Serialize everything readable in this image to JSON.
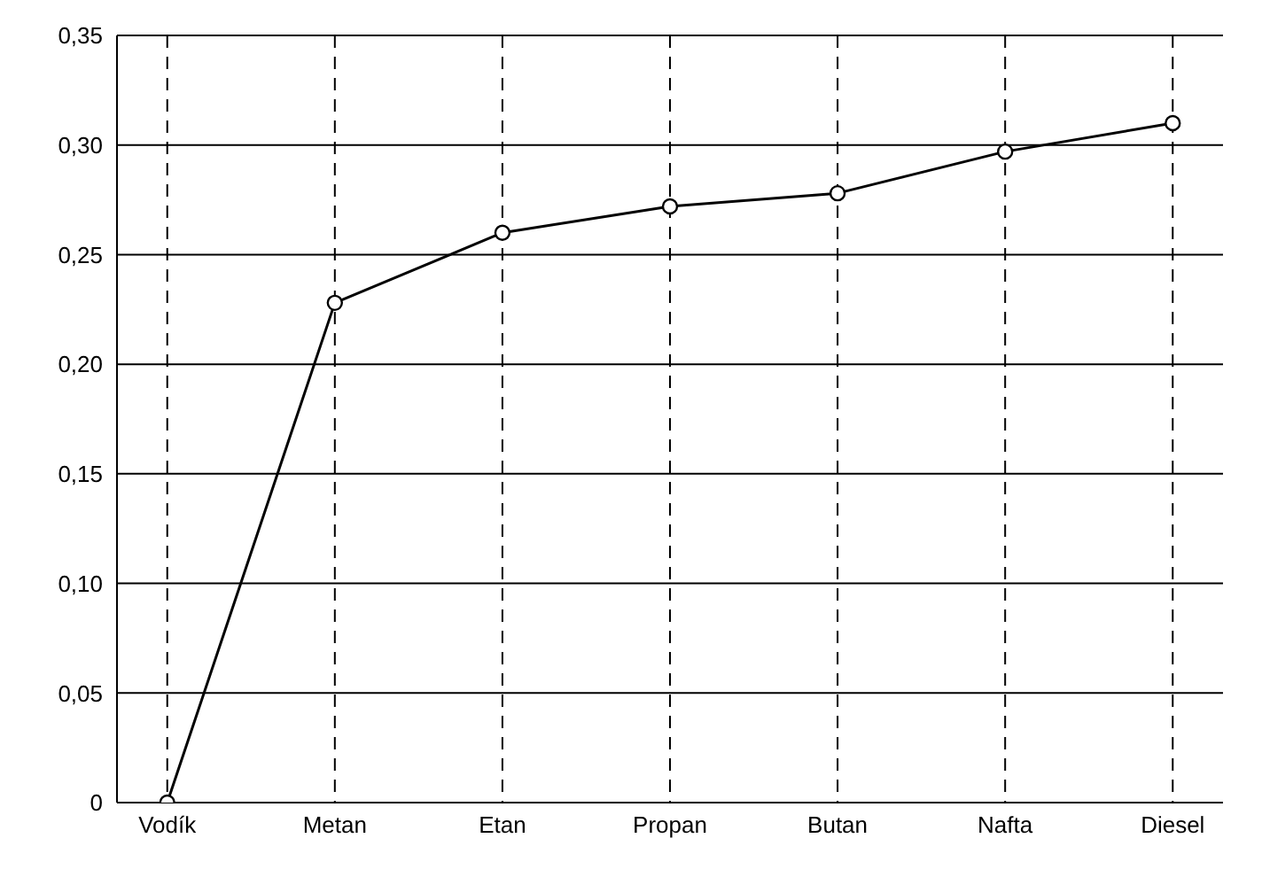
{
  "chart_data": {
    "type": "line",
    "categories": [
      "Vodík",
      "Metan",
      "Etan",
      "Propan",
      "Butan",
      "Nafta",
      "Diesel"
    ],
    "series": [
      {
        "color": "#000000",
        "values": [
          0,
          0.228,
          0.26,
          0.272,
          0.278,
          0.297,
          0.31
        ]
      }
    ],
    "ylim": [
      0,
      0.35
    ],
    "yticks": [
      {
        "value": 0,
        "label": "0"
      },
      {
        "value": 0.05,
        "label": "0,05"
      },
      {
        "value": 0.1,
        "label": "0,10"
      },
      {
        "value": 0.15,
        "label": "0,15"
      },
      {
        "value": 0.2,
        "label": "0,20"
      },
      {
        "value": 0.25,
        "label": "0,25"
      },
      {
        "value": 0.3,
        "label": "0,30"
      },
      {
        "value": 0.35,
        "label": "0,35"
      }
    ],
    "grid": true,
    "marker": "circle",
    "line_style": "solid"
  }
}
